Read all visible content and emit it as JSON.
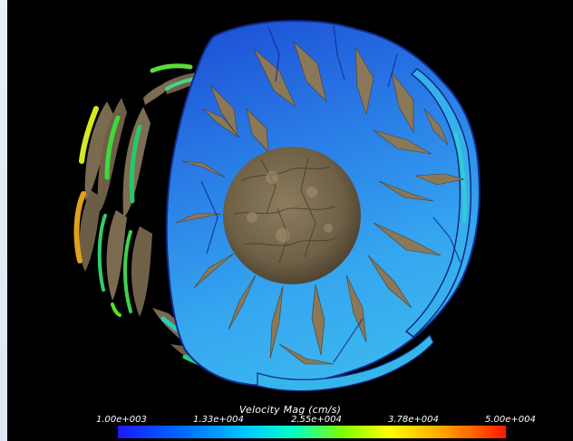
{
  "colorbar": {
    "title": "Velocity Mag (cm/s)",
    "ticks": [
      "1.00e+003",
      "1.33e+004",
      "2.55e+004",
      "3.78e+004",
      "5.00e+004"
    ],
    "range": [
      1000,
      50000
    ],
    "colors": [
      "#1a1aff",
      "#00a0ff",
      "#00ffdd",
      "#7fff00",
      "#ffff00",
      "#ff9900",
      "#ff1a00"
    ]
  },
  "palette": {
    "background": "#000000",
    "debris": "#7a6a50",
    "fluid_dark": "#1f57d9",
    "fluid_light": "#34a4f0"
  }
}
